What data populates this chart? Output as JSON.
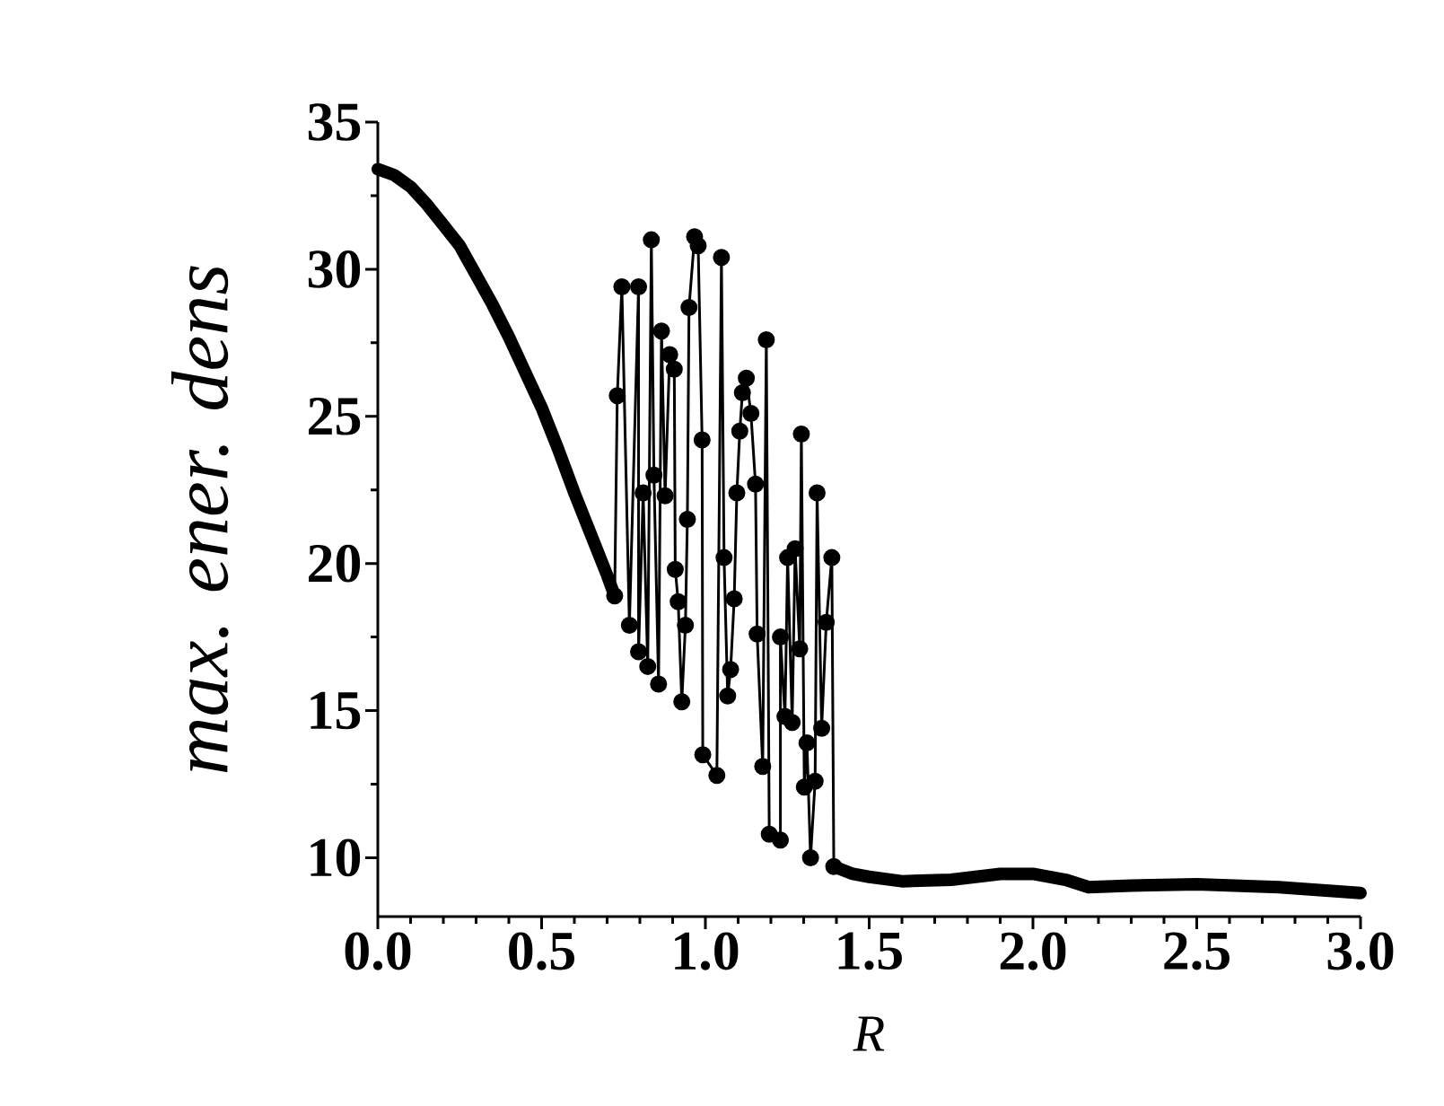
{
  "chart_data": {
    "type": "line",
    "xlabel": "R",
    "ylabel": "max. ener. dens",
    "xlim": [
      0,
      3
    ],
    "ylim": [
      8,
      35
    ],
    "xticks": [
      {
        "value": 0,
        "label": "0.0"
      },
      0.5,
      {
        "value": 1,
        "label": "1.0"
      },
      1.5,
      {
        "value": 2,
        "label": "2.0"
      },
      2.5,
      {
        "value": 3,
        "label": "3.0"
      }
    ],
    "yticks": [
      10,
      15,
      20,
      25,
      30,
      35
    ],
    "grid": false,
    "series": [
      {
        "color": "#000000",
        "marker": "none",
        "x": [
          0,
          0.05,
          0.1,
          0.15,
          0.2,
          0.25,
          0.3,
          0.35,
          0.4,
          0.45,
          0.5,
          0.55,
          0.6,
          0.65,
          0.7,
          0.723
        ],
        "values": [
          33.4,
          33.2,
          32.8,
          32.2,
          31.5,
          30.8,
          29.8,
          28.8,
          27.7,
          26.5,
          25.3,
          23.9,
          22.4,
          21.0,
          19.6,
          18.9
        ]
      },
      {
        "color": "#000000",
        "marker": "circle",
        "x": [
          0.723,
          0.731,
          0.745,
          0.768,
          0.796,
          0.796,
          0.81,
          0.824,
          0.835,
          0.843,
          0.857,
          0.866,
          0.877,
          0.891,
          0.905,
          0.908,
          0.917,
          0.928,
          0.939,
          0.945,
          0.95,
          0.967,
          0.978,
          0.99,
          0.992,
          1.035,
          1.049,
          1.057,
          1.068,
          1.077,
          1.088,
          1.096,
          1.105,
          1.113,
          1.125,
          1.139,
          1.153,
          1.158,
          1.175,
          1.186,
          1.195,
          1.229,
          1.229,
          1.243,
          1.251,
          1.265,
          1.274,
          1.288,
          1.293,
          1.302,
          1.31,
          1.321,
          1.335,
          1.341,
          1.355,
          1.369,
          1.386,
          1.392
        ],
        "values": [
          18.9,
          25.7,
          29.4,
          17.9,
          29.4,
          17.0,
          22.4,
          16.5,
          31.0,
          23.0,
          15.9,
          27.9,
          22.3,
          27.1,
          26.6,
          19.8,
          18.7,
          15.3,
          17.9,
          21.5,
          28.7,
          31.1,
          30.8,
          24.2,
          13.5,
          12.8,
          30.4,
          20.2,
          15.5,
          16.4,
          18.8,
          22.4,
          24.5,
          25.8,
          26.3,
          25.1,
          22.7,
          17.6,
          13.1,
          27.6,
          10.8,
          10.6,
          17.5,
          14.8,
          20.2,
          14.6,
          20.5,
          17.1,
          24.4,
          12.4,
          13.9,
          10.0,
          12.6,
          22.4,
          14.4,
          18.0,
          20.2,
          9.7
        ]
      },
      {
        "color": "#000000",
        "marker": "none",
        "x": [
          1.392,
          1.45,
          1.5,
          1.6,
          1.75,
          1.9,
          2.0,
          2.1,
          2.17,
          2.3,
          2.5,
          2.75,
          3.0
        ],
        "values": [
          9.7,
          9.45,
          9.35,
          9.2,
          9.25,
          9.45,
          9.45,
          9.25,
          9.0,
          9.05,
          9.1,
          9.0,
          8.8
        ]
      }
    ]
  }
}
